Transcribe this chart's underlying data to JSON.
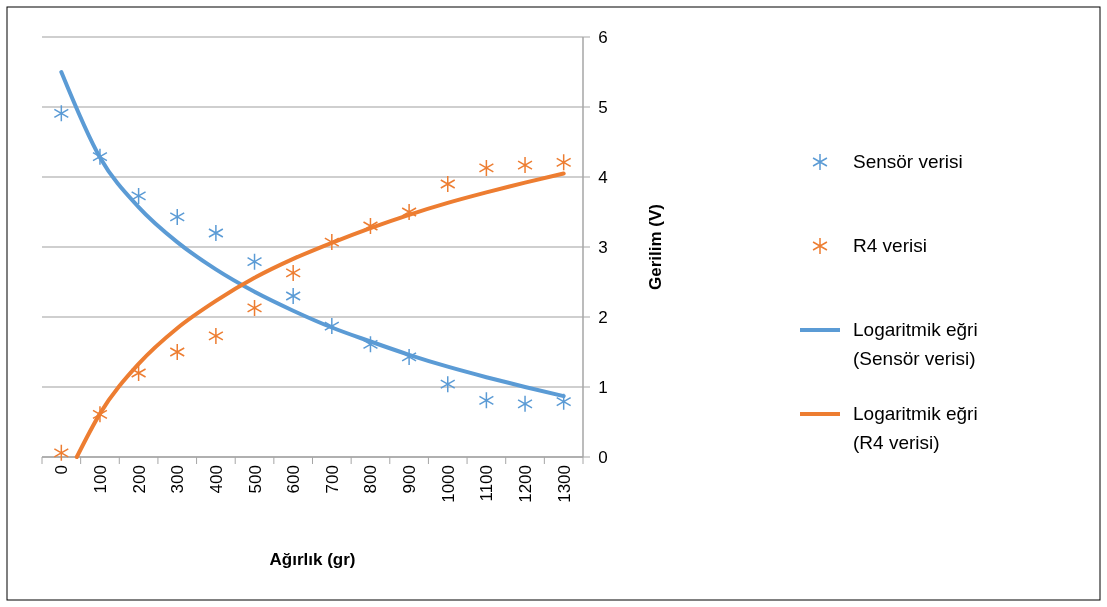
{
  "chart_data": {
    "type": "scatter",
    "xlabel": "Ağırlık (gr)",
    "ylabel": "Gerilim (V)",
    "x": [
      0,
      100,
      200,
      300,
      400,
      500,
      600,
      700,
      800,
      900,
      1000,
      1100,
      1200,
      1300
    ],
    "xlim": [
      -50,
      1350
    ],
    "xticks": [
      {
        "value": -50,
        "label": null
      },
      0,
      {
        "value": 50,
        "label": null
      },
      100,
      {
        "value": 150,
        "label": null
      },
      200,
      {
        "value": 250,
        "label": null
      },
      300,
      {
        "value": 350,
        "label": null
      },
      400,
      {
        "value": 450,
        "label": null
      },
      500,
      {
        "value": 550,
        "label": null
      },
      600,
      {
        "value": 650,
        "label": null
      },
      700,
      {
        "value": 750,
        "label": null
      },
      800,
      {
        "value": 850,
        "label": null
      },
      900,
      {
        "value": 950,
        "label": null
      },
      1000,
      {
        "value": 1050,
        "label": null
      },
      1100,
      {
        "value": 1150,
        "label": null
      },
      1200,
      {
        "value": 1250,
        "label": null
      },
      1300,
      {
        "value": 1350,
        "label": null
      }
    ],
    "ylim": [
      0,
      6
    ],
    "yticks": [
      0,
      1,
      2,
      3,
      4,
      5,
      6
    ],
    "grid": "y",
    "legend": "right",
    "marker": "cross",
    "series": [
      {
        "name": "Sensör verisi",
        "color": "#5b9bd5",
        "values": [
          4.91,
          4.29,
          3.73,
          3.43,
          3.2,
          2.79,
          2.3,
          1.87,
          1.61,
          1.43,
          1.04,
          0.81,
          0.76,
          0.79
        ]
      },
      {
        "name": "R4 verisi",
        "color": "#ed7d31",
        "values": [
          0.06,
          0.61,
          1.2,
          1.5,
          1.73,
          2.13,
          2.63,
          3.07,
          3.3,
          3.5,
          3.9,
          4.13,
          4.17,
          4.21
        ]
      },
      {
        "name": "Logaritmik eğri (Sensör verisi)",
        "type": "line",
        "marker": "none",
        "color": "#5b9bd5",
        "values": [
          5.5,
          4.28,
          3.57,
          3.07,
          2.68,
          2.36,
          2.09,
          1.85,
          1.65,
          1.46,
          1.29,
          1.14,
          1.0,
          0.87
        ]
      },
      {
        "name": "Logaritmik eğri (R4 verisi)",
        "type": "line",
        "marker": "none",
        "color": "#ed7d31",
        "x": [
          40,
          100,
          200,
          300,
          400,
          500,
          600,
          700,
          800,
          900,
          1000,
          1100,
          1200,
          1300
        ],
        "values": [
          0,
          0.62,
          1.33,
          1.84,
          2.23,
          2.56,
          2.83,
          3.06,
          3.27,
          3.46,
          3.63,
          3.78,
          3.92,
          4.05
        ]
      }
    ]
  }
}
